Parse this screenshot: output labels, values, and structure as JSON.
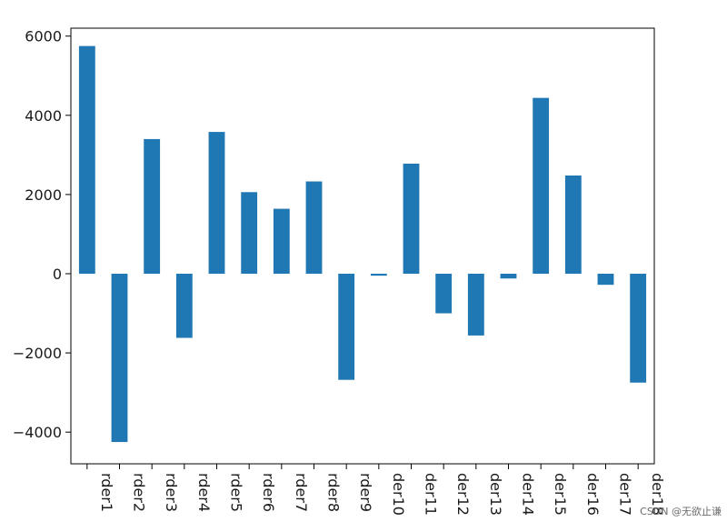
{
  "chart_data": {
    "type": "bar",
    "categories": [
      "rder1",
      "rder2",
      "rder3",
      "rder4",
      "rder5",
      "rder6",
      "rder7",
      "rder8",
      "rder9",
      "der10",
      "der11",
      "der12",
      "der13",
      "der14",
      "der15",
      "der16",
      "der17",
      "der18"
    ],
    "values": [
      5750,
      -4250,
      3400,
      -1620,
      3580,
      2060,
      1640,
      2330,
      -2680,
      -50,
      2780,
      -1000,
      -1560,
      -120,
      4440,
      2480,
      -280,
      -2750
    ],
    "yticks": [
      6000,
      4000,
      2000,
      0,
      -2000,
      -4000
    ],
    "ytick_labels": [
      "6000",
      "4000",
      "2000",
      "0",
      "−2000",
      "−4000"
    ],
    "ylim": [
      -4800,
      6200
    ],
    "bar_color": "#1f77b4",
    "title": "",
    "xlabel": "",
    "ylabel": "",
    "grid": false,
    "legend": "none"
  },
  "watermark": "CSDN @无欲止谦"
}
